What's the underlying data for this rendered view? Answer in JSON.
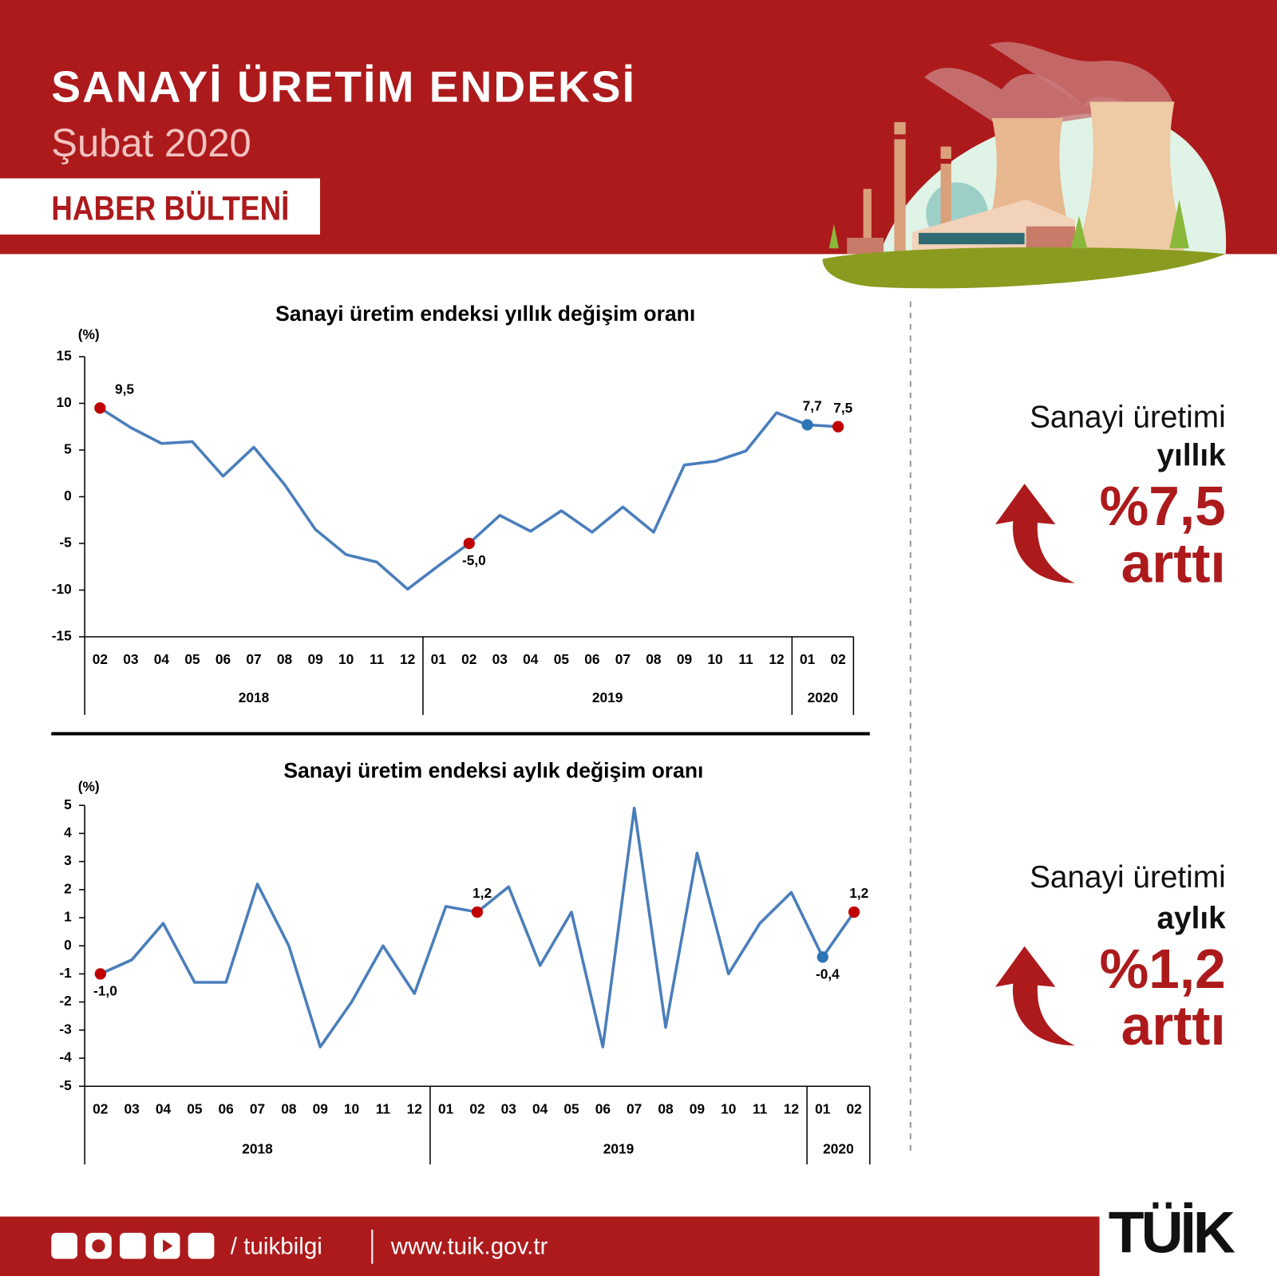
{
  "header": {
    "title": "SANAYİ ÜRETİM ENDEKSİ",
    "subtitle": "Şubat 2020",
    "badge": "HABER BÜLTENİ"
  },
  "chart_data": [
    {
      "type": "line",
      "title": "Sanayi üretim endeksi yıllık değişim oranı",
      "y_label": "(%)",
      "categories": [
        "02",
        "03",
        "04",
        "05",
        "06",
        "07",
        "08",
        "09",
        "10",
        "11",
        "12",
        "01",
        "02",
        "03",
        "04",
        "05",
        "06",
        "07",
        "08",
        "09",
        "10",
        "11",
        "12",
        "01",
        "02"
      ],
      "groups": [
        {
          "label": "2018",
          "count": 11
        },
        {
          "label": "2019",
          "count": 12
        },
        {
          "label": "2020",
          "count": 2
        }
      ],
      "values": [
        9.5,
        7.4,
        5.7,
        5.9,
        2.2,
        5.3,
        1.3,
        -3.5,
        -6.2,
        -7.0,
        -9.9,
        -7.4,
        -5.0,
        -2.0,
        -3.7,
        -1.5,
        -3.8,
        -1.1,
        -3.8,
        3.4,
        3.8,
        4.9,
        9.0,
        7.7,
        7.5
      ],
      "value_labels": [
        "9,5",
        null,
        null,
        null,
        null,
        null,
        null,
        null,
        null,
        null,
        null,
        null,
        "-5,0",
        null,
        null,
        null,
        null,
        null,
        null,
        null,
        null,
        null,
        null,
        "7,7",
        "7,5"
      ],
      "marker_colors": [
        "#c00000",
        null,
        null,
        null,
        null,
        null,
        null,
        null,
        null,
        null,
        null,
        null,
        "#c00000",
        null,
        null,
        null,
        null,
        null,
        null,
        null,
        null,
        null,
        null,
        "#2e75b6",
        "#c00000"
      ],
      "color": "#4a7ebb",
      "ylim": [
        -15,
        15
      ],
      "yticks": [
        -15,
        -10,
        -5,
        0,
        5,
        10,
        15
      ]
    },
    {
      "type": "line",
      "title": "Sanayi üretim endeksi aylık değişim oranı",
      "y_label": "(%)",
      "categories": [
        "02",
        "03",
        "04",
        "05",
        "06",
        "07",
        "08",
        "09",
        "10",
        "11",
        "12",
        "01",
        "02",
        "03",
        "04",
        "05",
        "06",
        "07",
        "08",
        "09",
        "10",
        "11",
        "12",
        "01",
        "02"
      ],
      "groups": [
        {
          "label": "2018",
          "count": 11
        },
        {
          "label": "2019",
          "count": 12
        },
        {
          "label": "2020",
          "count": 2
        }
      ],
      "values": [
        -1.0,
        -0.5,
        0.8,
        -1.3,
        -1.3,
        2.2,
        0.0,
        -3.6,
        -2.0,
        0.0,
        -1.7,
        1.4,
        1.2,
        2.1,
        -0.7,
        1.2,
        -3.6,
        4.9,
        -2.9,
        3.3,
        -1.0,
        0.8,
        1.9,
        -0.4,
        1.2
      ],
      "value_labels": [
        "-1,0",
        null,
        null,
        null,
        null,
        null,
        null,
        null,
        null,
        null,
        null,
        null,
        "1,2",
        null,
        null,
        null,
        null,
        null,
        null,
        null,
        null,
        null,
        null,
        "-0,4",
        "1,2"
      ],
      "marker_colors": [
        "#c00000",
        null,
        null,
        null,
        null,
        null,
        null,
        null,
        null,
        null,
        null,
        null,
        "#c00000",
        null,
        null,
        null,
        null,
        null,
        null,
        null,
        null,
        null,
        null,
        "#2e75b6",
        "#c00000"
      ],
      "color": "#4a7ebb",
      "ylim": [
        -5,
        5
      ],
      "yticks": [
        -5,
        -4,
        -3,
        -2,
        -1,
        0,
        1,
        2,
        3,
        4,
        5
      ]
    }
  ],
  "highlights": [
    {
      "line1": "Sanayi üretimi",
      "line2": "yıllık",
      "value": "%7,5",
      "verb": "arttı"
    },
    {
      "line1": "Sanayi üretimi",
      "line2": "aylık",
      "value": "%1,2",
      "verb": "arttı"
    }
  ],
  "footer": {
    "handle": "/ tuikbilgi",
    "url": "www.tuik.gov.tr",
    "logo": "TÜİK"
  }
}
